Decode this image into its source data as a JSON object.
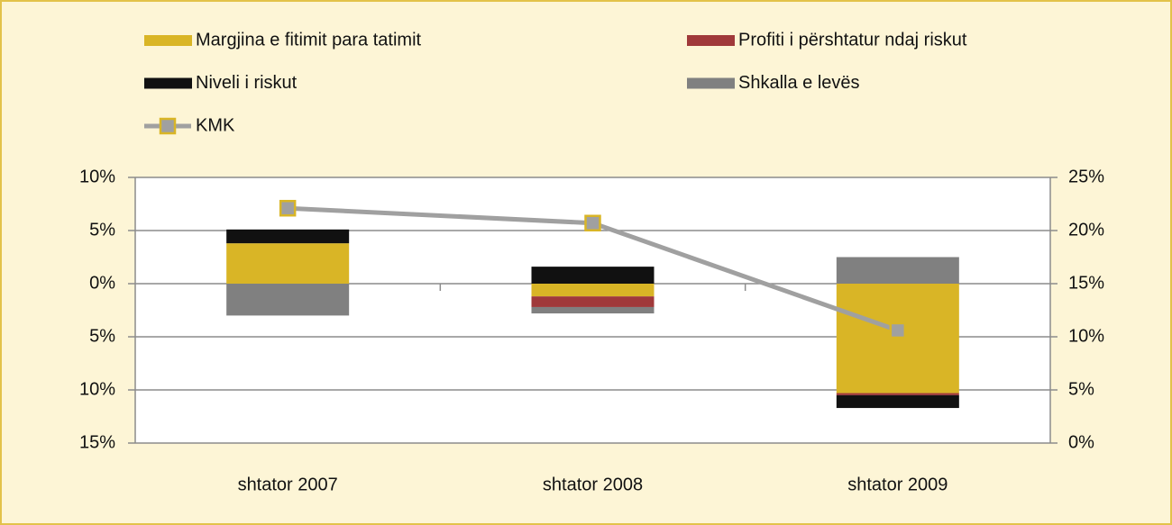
{
  "chart_data": {
    "type": "bar",
    "stacked": true,
    "categories": [
      "shtator 2007",
      "shtator 2008",
      "shtator 2009"
    ],
    "series": [
      {
        "name": "Margjina e fitimit para tatimit",
        "color": "#d9b526",
        "values": [
          3.8,
          -1.2,
          -10.3
        ]
      },
      {
        "name": "Profiti i përshtatur ndaj riskut",
        "color": "#a0393a",
        "values": [
          0,
          -1.0,
          -0.2
        ]
      },
      {
        "name": "Niveli i riskut",
        "color": "#111111",
        "values": [
          1.3,
          1.6,
          -1.2
        ]
      },
      {
        "name": "Shkalla e levës",
        "color": "#808080",
        "values": [
          -3.0,
          -0.6,
          2.5
        ]
      },
      {
        "name": "KMK",
        "color": "#a0a0a0",
        "marker_edge": "#d9b526",
        "axis": "y2",
        "values": [
          22.1,
          20.7,
          10.6
        ]
      }
    ],
    "ylim": [
      -15,
      10
    ],
    "yticks": [
      {
        "value": 10,
        "label": "10%"
      },
      {
        "value": 5,
        "label": "5%"
      },
      {
        "value": 0,
        "label": "0%"
      },
      {
        "value": -5,
        "label": "5%"
      },
      {
        "value": -10,
        "label": "10%"
      },
      {
        "value": -15,
        "label": "15%"
      }
    ],
    "y2lim": [
      0,
      25
    ],
    "y2ticks": [
      {
        "value": 0,
        "label": "0%"
      },
      {
        "value": 5,
        "label": "5%"
      },
      {
        "value": 10,
        "label": "10%"
      },
      {
        "value": 15,
        "label": "15%"
      },
      {
        "value": 20,
        "label": "20%"
      },
      {
        "value": 25,
        "label": "25%"
      }
    ],
    "grid": true
  }
}
